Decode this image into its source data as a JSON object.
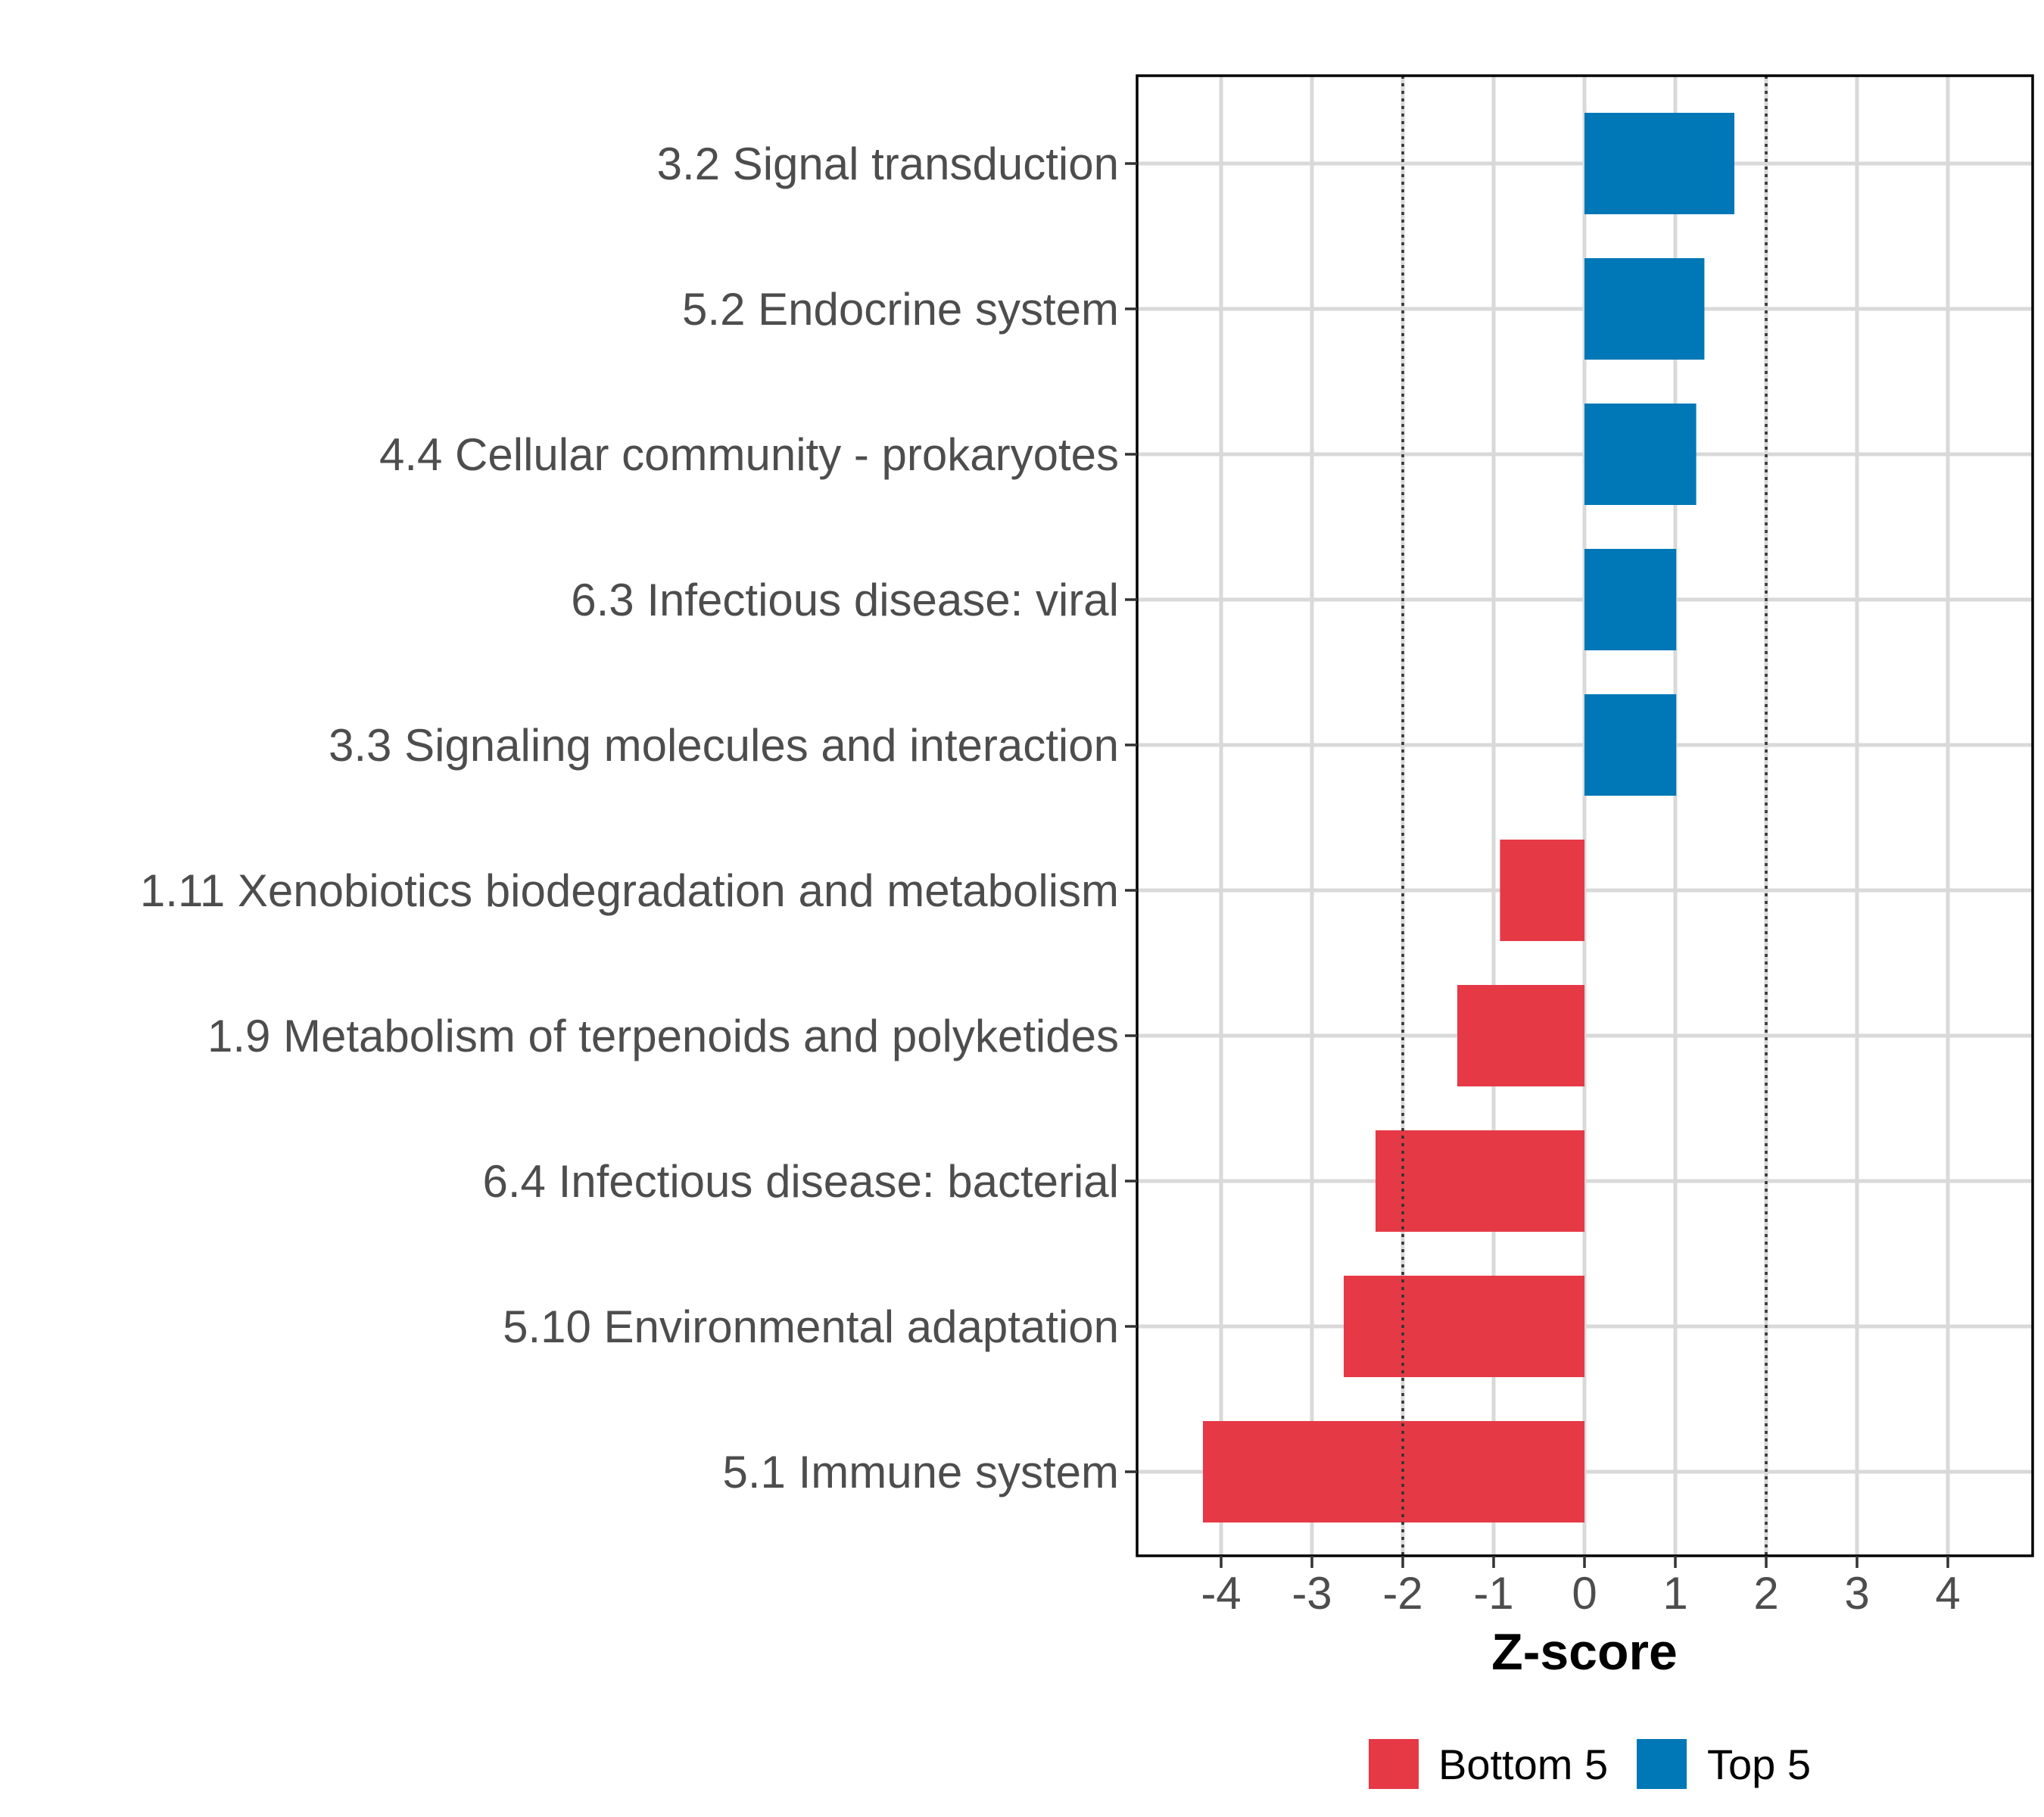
{
  "chart_data": {
    "type": "bar",
    "orientation": "horizontal",
    "title": "",
    "xlabel": "Z-score",
    "ylabel": "",
    "xlim": [
      -5,
      5
    ],
    "x_ticks": [
      -4,
      -3,
      -2,
      -1,
      0,
      1,
      2,
      3,
      4
    ],
    "x_tick_labels": [
      "-4",
      "-3",
      "-2",
      "-1",
      "0",
      "1",
      "2",
      "3",
      "4"
    ],
    "reference_lines": [
      -2,
      2
    ],
    "grid": true,
    "legend_position": "bottom",
    "categories": [
      "3.2 Signal transduction",
      "5.2 Endocrine system",
      "4.4 Cellular community - prokaryotes",
      "6.3 Infectious disease: viral",
      "3.3 Signaling molecules and interaction",
      "1.11 Xenobiotics biodegradation and metabolism",
      "1.9 Metabolism of terpenoids and polyketides",
      "6.4 Infectious disease: bacterial",
      "5.10 Environmental adaptation",
      "5.1 Immune system"
    ],
    "values": [
      1.65,
      1.32,
      1.23,
      1.01,
      1.01,
      -0.93,
      -1.4,
      -2.3,
      -2.65,
      -4.2
    ],
    "groups": [
      "Top 5",
      "Top 5",
      "Top 5",
      "Top 5",
      "Top 5",
      "Bottom 5",
      "Bottom 5",
      "Bottom 5",
      "Bottom 5",
      "Bottom 5"
    ],
    "legend": [
      {
        "name": "Bottom 5",
        "color": "#e63946"
      },
      {
        "name": "Top 5",
        "color": "#0077b6"
      }
    ]
  }
}
